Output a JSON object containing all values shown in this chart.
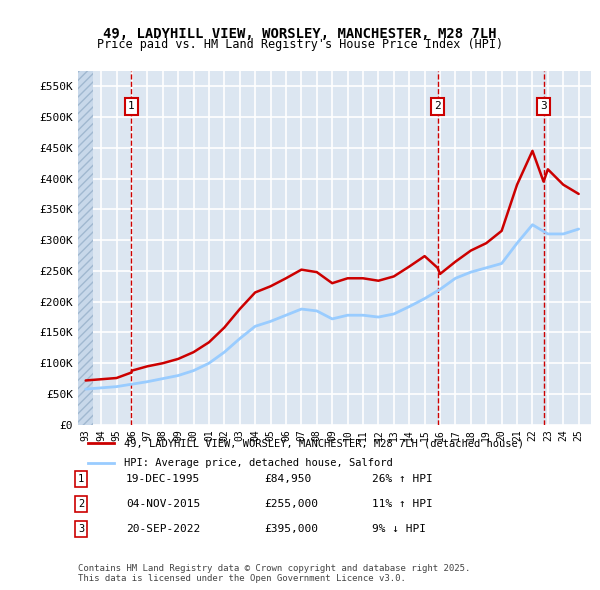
{
  "title_line1": "49, LADYHILL VIEW, WORSLEY, MANCHESTER, M28 7LH",
  "title_line2": "Price paid vs. HM Land Registry's House Price Index (HPI)",
  "ylabel": "",
  "ylim": [
    0,
    575000
  ],
  "yticks": [
    0,
    50000,
    100000,
    150000,
    200000,
    250000,
    300000,
    350000,
    400000,
    450000,
    500000,
    550000
  ],
  "ytick_labels": [
    "£0",
    "£50K",
    "£100K",
    "£150K",
    "£200K",
    "£250K",
    "£300K",
    "£350K",
    "£400K",
    "£450K",
    "£500K",
    "£550K"
  ],
  "legend_label_red": "49, LADYHILL VIEW, WORSLEY, MANCHESTER, M28 7LH (detached house)",
  "legend_label_blue": "HPI: Average price, detached house, Salford",
  "footer": "Contains HM Land Registry data © Crown copyright and database right 2025.\nThis data is licensed under the Open Government Licence v3.0.",
  "transaction_labels": [
    "1",
    "2",
    "3"
  ],
  "transaction_dates": [
    "19-DEC-1995",
    "04-NOV-2015",
    "20-SEP-2022"
  ],
  "transaction_prices": [
    "£84,950",
    "£255,000",
    "£395,000"
  ],
  "transaction_hpi": [
    "26% ↑ HPI",
    "11% ↑ HPI",
    "9% ↓ HPI"
  ],
  "sale_years": [
    1995.97,
    2015.84,
    2022.72
  ],
  "sale_prices": [
    84950,
    255000,
    395000
  ],
  "hpi_x": [
    1993,
    1994,
    1995,
    1996,
    1997,
    1998,
    1999,
    2000,
    2001,
    2002,
    2003,
    2004,
    2005,
    2006,
    2007,
    2008,
    2009,
    2010,
    2011,
    2012,
    2013,
    2014,
    2015,
    2016,
    2017,
    2018,
    2019,
    2020,
    2021,
    2022,
    2023,
    2024,
    2025
  ],
  "hpi_y": [
    58000,
    60000,
    62000,
    66000,
    70000,
    75000,
    80000,
    88000,
    100000,
    118000,
    140000,
    160000,
    168000,
    178000,
    188000,
    185000,
    172000,
    178000,
    178000,
    175000,
    180000,
    192000,
    205000,
    220000,
    238000,
    248000,
    255000,
    262000,
    295000,
    325000,
    310000,
    310000,
    318000
  ],
  "red_x": [
    1993,
    1994,
    1995,
    1995.97,
    1996,
    1997,
    1998,
    1999,
    2000,
    2001,
    2002,
    2003,
    2004,
    2005,
    2006,
    2007,
    2008,
    2009,
    2010,
    2011,
    2012,
    2013,
    2014,
    2015,
    2015.84,
    2016,
    2017,
    2018,
    2019,
    2020,
    2021,
    2022,
    2022.72,
    2023,
    2024,
    2025
  ],
  "red_y": [
    72000,
    74000,
    76000,
    84950,
    88000,
    95000,
    100000,
    107000,
    118000,
    134000,
    158000,
    188000,
    215000,
    225000,
    238000,
    252000,
    248000,
    230000,
    238000,
    238000,
    234000,
    241000,
    257000,
    274000,
    255000,
    245000,
    265000,
    283000,
    295000,
    315000,
    390000,
    445000,
    395000,
    415000,
    390000,
    375000
  ],
  "chart_bg": "#dce6f1",
  "hatch_bg": "#c8d8ea",
  "plot_area_color": "#dce6f1",
  "red_color": "#cc0000",
  "blue_color": "#99ccff",
  "vline_color": "#cc0000",
  "grid_color": "#ffffff"
}
